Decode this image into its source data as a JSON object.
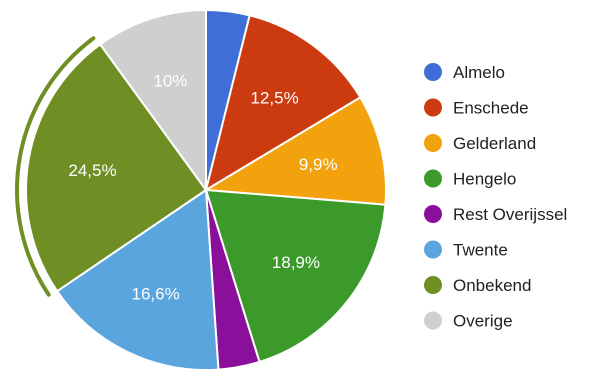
{
  "chart_data": {
    "type": "pie",
    "title": "",
    "legend_position": "right",
    "slices": [
      {
        "name": "Almelo",
        "value": 3.9,
        "label": "",
        "color": "#3e6ed6"
      },
      {
        "name": "Enschede",
        "value": 12.5,
        "label": "12,5%",
        "color": "#cc3a10"
      },
      {
        "name": "Gelderland",
        "value": 9.9,
        "label": "9,9%",
        "color": "#f2a20c"
      },
      {
        "name": "Hengelo",
        "value": 18.9,
        "label": "18,9%",
        "color": "#3b9a2a"
      },
      {
        "name": "Rest Overijssel",
        "value": 3.7,
        "label": "",
        "color": "#8a0f9a"
      },
      {
        "name": "Twente",
        "value": 16.6,
        "label": "16,6%",
        "color": "#5aa5de"
      },
      {
        "name": "Onbekend",
        "value": 24.5,
        "label": "24,5%",
        "color": "#6f8f25"
      },
      {
        "name": "Overige",
        "value": 10.0,
        "label": "10%",
        "color": "#cfcfcf"
      }
    ],
    "highlighted_slice": "Onbekend"
  }
}
